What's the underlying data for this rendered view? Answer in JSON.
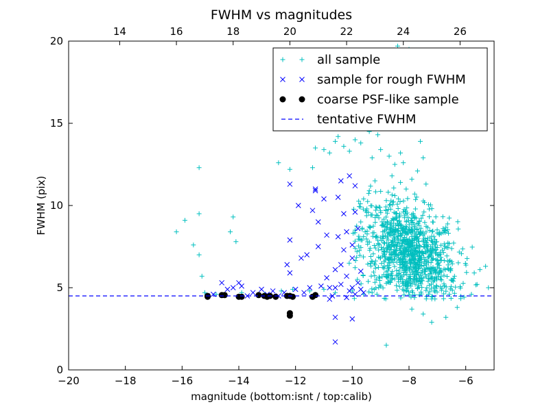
{
  "chart_data": {
    "type": "scatter",
    "title": "FWHM vs magnitudes",
    "xlabel": "magnitude (bottom:isnt / top:calib)",
    "ylabel": "FWHM (pix)",
    "xlim": [
      -20,
      -5
    ],
    "ylim": [
      0,
      20
    ],
    "x_ticks": [
      -20,
      -18,
      -16,
      -14,
      -12,
      -10,
      -8,
      -6
    ],
    "y_ticks": [
      0,
      5,
      10,
      15,
      20
    ],
    "top_axis": {
      "ticks": [
        14,
        16,
        18,
        20,
        22,
        24,
        26
      ],
      "offset": 32.2
    },
    "grid": false,
    "legend_position": "top-right",
    "series": [
      {
        "name": "all sample",
        "marker": "plus",
        "color": "#00bfbf",
        "points": [
          [
            -16.2,
            8.4
          ],
          [
            -15.9,
            9.1
          ],
          [
            -15.6,
            7.6
          ],
          [
            -15.4,
            12.3
          ],
          [
            -15.4,
            9.5
          ],
          [
            -15.4,
            7.0
          ],
          [
            -15.3,
            5.7
          ],
          [
            -14.2,
            9.3
          ],
          [
            -14.3,
            8.4
          ],
          [
            -14.1,
            7.8
          ],
          [
            -12.6,
            12.6
          ],
          [
            -12.2,
            12.2
          ],
          [
            -11.4,
            12.3
          ],
          [
            -11.3,
            13.5
          ],
          [
            -11.0,
            13.4
          ],
          [
            -10.8,
            13.2
          ],
          [
            -10.6,
            13.9
          ],
          [
            -10.5,
            14.2
          ],
          [
            -10.3,
            13.6
          ],
          [
            -10.1,
            13.3
          ],
          [
            -9.9,
            14.0
          ],
          [
            -9.7,
            13.8
          ],
          [
            -9.4,
            14.5
          ],
          [
            -9.1,
            14.3
          ],
          [
            -8.9,
            14.8
          ],
          [
            -9.3,
            12.9
          ],
          [
            -9.0,
            13.4
          ],
          [
            -8.7,
            13.0
          ],
          [
            -8.5,
            12.5
          ],
          [
            -8.3,
            13.2
          ],
          [
            -8.2,
            12.6
          ],
          [
            -8.6,
            11.8
          ],
          [
            -8.3,
            11.4
          ],
          [
            -8.1,
            11.0
          ],
          [
            -7.9,
            11.6
          ],
          [
            -7.8,
            10.7
          ],
          [
            -8.8,
            10.3
          ],
          [
            -8.5,
            10.6
          ],
          [
            -8.4,
            19.7
          ],
          [
            -8.0,
            19.5
          ],
          [
            -7.6,
            19.1
          ],
          [
            -8.2,
            18.6
          ],
          [
            -8.7,
            18.2
          ],
          [
            -8.4,
            17.6
          ],
          [
            -7.9,
            17.2
          ],
          [
            -8.6,
            16.8
          ],
          [
            -8.1,
            16.4
          ],
          [
            -7.7,
            16.0
          ],
          [
            -8.5,
            15.5
          ],
          [
            -8.2,
            15.1
          ],
          [
            -7.8,
            14.7
          ],
          [
            -7.6,
            13.9
          ],
          [
            -7.5,
            12.9
          ],
          [
            -7.7,
            12.1
          ],
          [
            -7.4,
            11.3
          ],
          [
            -9.6,
            10.4
          ],
          [
            -9.4,
            10.9
          ],
          [
            -9.2,
            11.5
          ],
          [
            -9.5,
            9.6
          ],
          [
            -9.7,
            9.0
          ],
          [
            -9.9,
            8.5
          ],
          [
            -8.8,
            1.5
          ],
          [
            -7.2,
            2.9
          ],
          [
            -6.7,
            3.2
          ],
          [
            -7.5,
            3.4
          ],
          [
            -7.9,
            3.7
          ],
          [
            -6.3,
            3.8
          ],
          [
            -5.7,
            5.9
          ],
          [
            -5.3,
            6.3
          ],
          [
            -5.5,
            6.1
          ],
          [
            -5.6,
            5.2
          ],
          [
            -5.8,
            4.6
          ],
          [
            -5.2,
            5.0
          ],
          [
            -15.2,
            4.7
          ],
          [
            -14.8,
            4.6
          ],
          [
            -13.9,
            4.7
          ],
          [
            -13.1,
            4.6
          ],
          [
            -12.5,
            4.8
          ],
          [
            -12.1,
            4.9
          ],
          [
            -11.5,
            4.8
          ],
          [
            -11.0,
            4.9
          ],
          [
            -10.6,
            4.7
          ],
          [
            -10.0,
            4.8
          ],
          [
            -9.6,
            4.6
          ],
          [
            -9.3,
            4.7
          ]
        ],
        "cluster": {
          "n": 1100,
          "center_x": -8.0,
          "center_y": 7.0,
          "spread_x": 0.85,
          "spread_y": 1.5,
          "x_range": [
            -10.2,
            -5.4
          ],
          "y_range": [
            4.3,
            11.5
          ]
        }
      },
      {
        "name": "sample for rough FWHM",
        "marker": "x",
        "color": "#0000ff",
        "points": [
          [
            -15.1,
            4.5
          ],
          [
            -14.9,
            4.6
          ],
          [
            -14.6,
            5.3
          ],
          [
            -14.4,
            4.9
          ],
          [
            -14.2,
            5.0
          ],
          [
            -14.0,
            5.3
          ],
          [
            -13.9,
            5.1
          ],
          [
            -13.7,
            4.5
          ],
          [
            -13.5,
            4.7
          ],
          [
            -13.2,
            4.9
          ],
          [
            -13.0,
            4.6
          ],
          [
            -12.8,
            4.8
          ],
          [
            -12.6,
            4.5
          ],
          [
            -12.4,
            4.7
          ],
          [
            -12.3,
            6.4
          ],
          [
            -12.2,
            5.9
          ],
          [
            -12.2,
            7.9
          ],
          [
            -12.2,
            11.3
          ],
          [
            -11.9,
            10.0
          ],
          [
            -11.8,
            6.8
          ],
          [
            -11.6,
            7.0
          ],
          [
            -11.5,
            5.0
          ],
          [
            -11.4,
            9.7
          ],
          [
            -11.3,
            11.0
          ],
          [
            -11.3,
            10.9
          ],
          [
            -11.2,
            9.0
          ],
          [
            -11.2,
            7.5
          ],
          [
            -11.0,
            10.4
          ],
          [
            -10.9,
            8.2
          ],
          [
            -10.8,
            5.0
          ],
          [
            -10.7,
            4.5
          ],
          [
            -10.6,
            6.1
          ],
          [
            -10.6,
            3.2
          ],
          [
            -10.6,
            1.7
          ],
          [
            -10.5,
            10.5
          ],
          [
            -10.5,
            8.1
          ],
          [
            -10.4,
            11.5
          ],
          [
            -10.3,
            9.5
          ],
          [
            -10.3,
            7.3
          ],
          [
            -10.2,
            5.7
          ],
          [
            -10.2,
            8.4
          ],
          [
            -10.1,
            11.8
          ],
          [
            -10.0,
            7.6
          ],
          [
            -10.0,
            6.8
          ],
          [
            -10.0,
            3.1
          ],
          [
            -9.9,
            11.2
          ],
          [
            -9.9,
            9.6
          ],
          [
            -9.8,
            8.6
          ],
          [
            -9.8,
            5.3
          ],
          [
            -9.7,
            6.0
          ],
          [
            -9.6,
            4.7
          ],
          [
            -10.4,
            6.4
          ],
          [
            -10.1,
            4.8
          ],
          [
            -10.6,
            5.0
          ],
          [
            -11.1,
            5.1
          ],
          [
            -11.7,
            4.7
          ],
          [
            -12.0,
            4.9
          ],
          [
            -10.9,
            5.6
          ],
          [
            -10.2,
            4.4
          ],
          [
            -9.9,
            4.6
          ],
          [
            -10.4,
            5.2
          ],
          [
            -10.8,
            4.3
          ],
          [
            -10.0,
            5.0
          ],
          [
            -9.7,
            4.9
          ]
        ]
      },
      {
        "name": "coarse PSF-like sample",
        "marker": "circle",
        "color": "#000000",
        "points": [
          [
            -15.1,
            4.45
          ],
          [
            -15.1,
            4.5
          ],
          [
            -14.6,
            4.55
          ],
          [
            -14.5,
            4.55
          ],
          [
            -14.0,
            4.45
          ],
          [
            -13.9,
            4.45
          ],
          [
            -13.3,
            4.55
          ],
          [
            -13.1,
            4.5
          ],
          [
            -13.0,
            4.45
          ],
          [
            -12.9,
            4.5
          ],
          [
            -12.7,
            4.45
          ],
          [
            -12.3,
            4.5
          ],
          [
            -12.2,
            4.5
          ],
          [
            -12.1,
            4.45
          ],
          [
            -12.2,
            3.45
          ],
          [
            -12.2,
            3.3
          ],
          [
            -11.4,
            4.45
          ],
          [
            -11.3,
            4.55
          ]
        ]
      },
      {
        "name": "tentative FWHM",
        "marker": "dashed-line",
        "color": "#0000ff",
        "value": 4.5
      }
    ]
  }
}
